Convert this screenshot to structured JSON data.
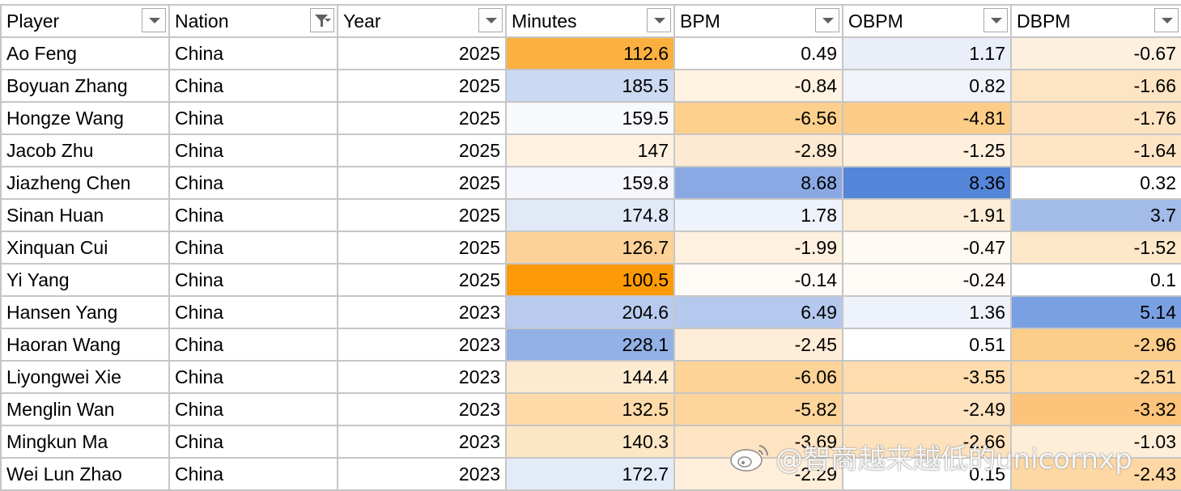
{
  "columns": [
    "Player",
    "Nation",
    "Year",
    "Minutes",
    "BPM",
    "OBPM",
    "DBPM"
  ],
  "filter_active_column": "Nation",
  "rows": [
    {
      "player": "Ao Feng",
      "nation": "China",
      "year": "2025",
      "minutes": "112.6",
      "bpm": "0.49",
      "obpm": "1.17",
      "dbpm": "-0.67",
      "colors": {
        "minutes": "#fbb040",
        "bpm": "#ffffff",
        "obpm": "#e9eef8",
        "dbpm": "#fdf0de"
      }
    },
    {
      "player": "Boyuan Zhang",
      "nation": "China",
      "year": "2025",
      "minutes": "185.5",
      "bpm": "-0.84",
      "obpm": "0.82",
      "dbpm": "-1.66",
      "colors": {
        "minutes": "#ccd9f2",
        "bpm": "#fff3e2",
        "obpm": "#f0f3fa",
        "dbpm": "#fde4c3"
      }
    },
    {
      "player": "Hongze Wang",
      "nation": "China",
      "year": "2025",
      "minutes": "159.5",
      "bpm": "-6.56",
      "obpm": "-4.81",
      "dbpm": "-1.76",
      "colors": {
        "minutes": "#f7f9fd",
        "bpm": "#fdcf8c",
        "obpm": "#fdcd87",
        "dbpm": "#fde3c0"
      }
    },
    {
      "player": "Jacob Zhu",
      "nation": "China",
      "year": "2025",
      "minutes": "147",
      "bpm": "-2.89",
      "obpm": "-1.25",
      "dbpm": "-1.64",
      "colors": {
        "minutes": "#fef1e0",
        "bpm": "#feead2",
        "obpm": "#fff0dd",
        "dbpm": "#fde5c4"
      }
    },
    {
      "player": "Jiazheng Chen",
      "nation": "China",
      "year": "2025",
      "minutes": "159.8",
      "bpm": "8.68",
      "obpm": "8.36",
      "dbpm": "0.32",
      "colors": {
        "minutes": "#f5f7fc",
        "bpm": "#8aa9e4",
        "obpm": "#5585d8",
        "dbpm": "#ffffff"
      }
    },
    {
      "player": "Sinan Huan",
      "nation": "China",
      "year": "2025",
      "minutes": "174.8",
      "bpm": "1.78",
      "obpm": "-1.91",
      "dbpm": "3.7",
      "colors": {
        "minutes": "#e1e9f7",
        "bpm": "#eef2fa",
        "obpm": "#feedd6",
        "dbpm": "#a3bbe9"
      }
    },
    {
      "player": "Xinquan Cui",
      "nation": "China",
      "year": "2025",
      "minutes": "126.7",
      "bpm": "-1.99",
      "obpm": "-0.47",
      "dbpm": "-1.52",
      "colors": {
        "minutes": "#fdd298",
        "bpm": "#fff1df",
        "obpm": "#fffaf3",
        "dbpm": "#fde7c9"
      }
    },
    {
      "player": "Yi Yang",
      "nation": "China",
      "year": "2025",
      "minutes": "100.5",
      "bpm": "-0.14",
      "obpm": "-0.24",
      "dbpm": "0.1",
      "colors": {
        "minutes": "#fd9a07",
        "bpm": "#fffbf6",
        "obpm": "#fffcf8",
        "dbpm": "#ffffff"
      }
    },
    {
      "player": "Hansen Yang",
      "nation": "China",
      "year": "2023",
      "minutes": "204.6",
      "bpm": "6.49",
      "obpm": "1.36",
      "dbpm": "5.14",
      "colors": {
        "minutes": "#b8caee",
        "bpm": "#b5c8ed",
        "obpm": "#eef2fa",
        "dbpm": "#79a0e2"
      }
    },
    {
      "player": "Haoran Wang",
      "nation": "China",
      "year": "2023",
      "minutes": "228.1",
      "bpm": "-2.45",
      "obpm": "0.51",
      "dbpm": "-2.96",
      "colors": {
        "minutes": "#93b1e6",
        "bpm": "#feedd8",
        "obpm": "#ffffff",
        "dbpm": "#fdcd8a"
      }
    },
    {
      "player": "Liyongwei Xie",
      "nation": "China",
      "year": "2023",
      "minutes": "144.4",
      "bpm": "-6.06",
      "obpm": "-3.55",
      "dbpm": "-2.51",
      "colors": {
        "minutes": "#fdebd1",
        "bpm": "#fdd398",
        "obpm": "#fedcad",
        "dbpm": "#fdd6a0"
      }
    },
    {
      "player": "Menglin Wan",
      "nation": "China",
      "year": "2023",
      "minutes": "132.5",
      "bpm": "-5.82",
      "obpm": "-2.49",
      "dbpm": "-3.32",
      "colors": {
        "minutes": "#fddaa8",
        "bpm": "#fdd49b",
        "obpm": "#fee3c0",
        "dbpm": "#fcc47a"
      }
    },
    {
      "player": "Mingkun Ma",
      "nation": "China",
      "year": "2023",
      "minutes": "140.3",
      "bpm": "-3.69",
      "obpm": "-2.66",
      "dbpm": "-1.03",
      "colors": {
        "minutes": "#fde6c6",
        "bpm": "#fee4c2",
        "obpm": "#fee2bd",
        "dbpm": "#feeed8"
      }
    },
    {
      "player": "Wei Lun Zhao",
      "nation": "China",
      "year": "2023",
      "minutes": "172.7",
      "bpm": "-2.29",
      "obpm": "0.15",
      "dbpm": "-2.43",
      "colors": {
        "minutes": "#e4ebf8",
        "bpm": "#feeeda",
        "obpm": "#ffffff",
        "dbpm": "#fdd8a4"
      }
    }
  ],
  "watermark": {
    "text": "@智商越来越低的unicornxp",
    "icon": "weibo-logo-icon"
  }
}
